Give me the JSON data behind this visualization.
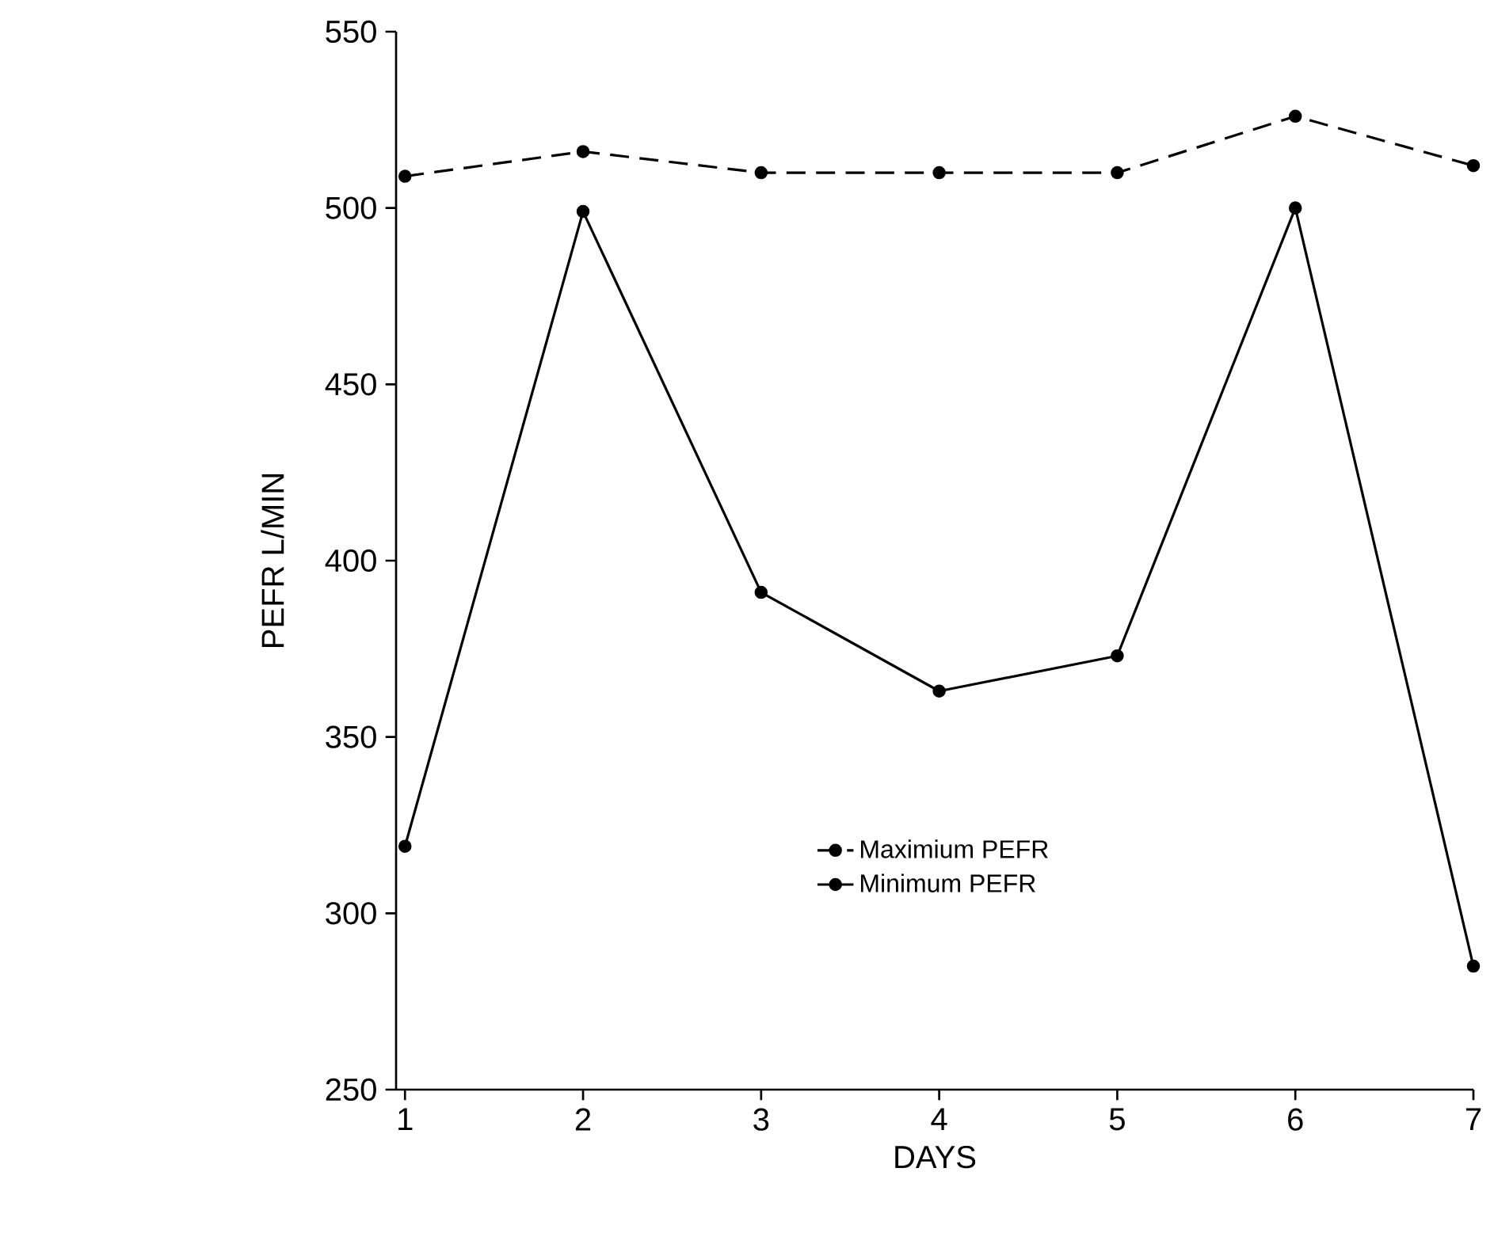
{
  "chart_data": {
    "type": "line",
    "xlabel": "DAYS",
    "ylabel": "PEFR L/MIN",
    "x": [
      1,
      2,
      3,
      4,
      5,
      6,
      7
    ],
    "xlim": [
      0.95,
      7
    ],
    "xticks": [
      1,
      2,
      3,
      4,
      5,
      6,
      7
    ],
    "ylim": [
      250,
      550
    ],
    "yticks": [
      250,
      300,
      350,
      400,
      450,
      500,
      550
    ],
    "series": [
      {
        "name": "Maximium  PEFR",
        "color": "#000000",
        "line_style": "dashed",
        "values": [
          509,
          516,
          510,
          510,
          510,
          526,
          512
        ]
      },
      {
        "name": "Minimum  PEFR",
        "color": "#000000",
        "line_style": "solid",
        "values": [
          319,
          499,
          391,
          363,
          373,
          500,
          285
        ]
      }
    ],
    "marker": "circle",
    "legend": "bottom",
    "grid": false
  }
}
